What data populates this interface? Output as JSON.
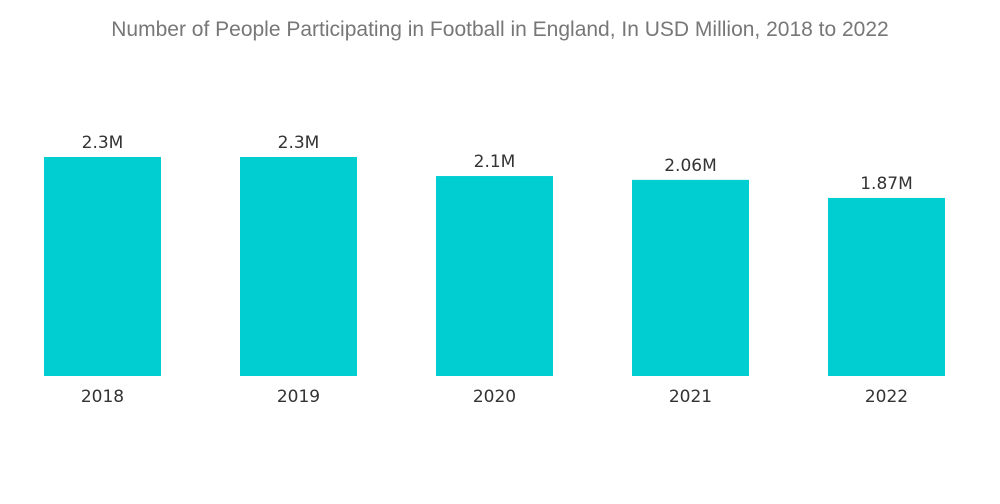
{
  "chart_data": {
    "type": "bar",
    "title": "Number of People Participating in Football in England, In USD Million, 2018 to 2022",
    "categories": [
      "2018",
      "2019",
      "2020",
      "2021",
      "2022"
    ],
    "values": [
      2.3,
      2.3,
      2.1,
      2.06,
      1.87
    ],
    "data_labels": [
      "2.3M",
      "2.3M",
      "2.1M",
      "2.06M",
      "1.87M"
    ],
    "xlabel": "",
    "ylabel": "",
    "ylim": [
      0,
      2.3
    ],
    "grid": false,
    "legend": "none",
    "bar_color": "#00CED1"
  }
}
